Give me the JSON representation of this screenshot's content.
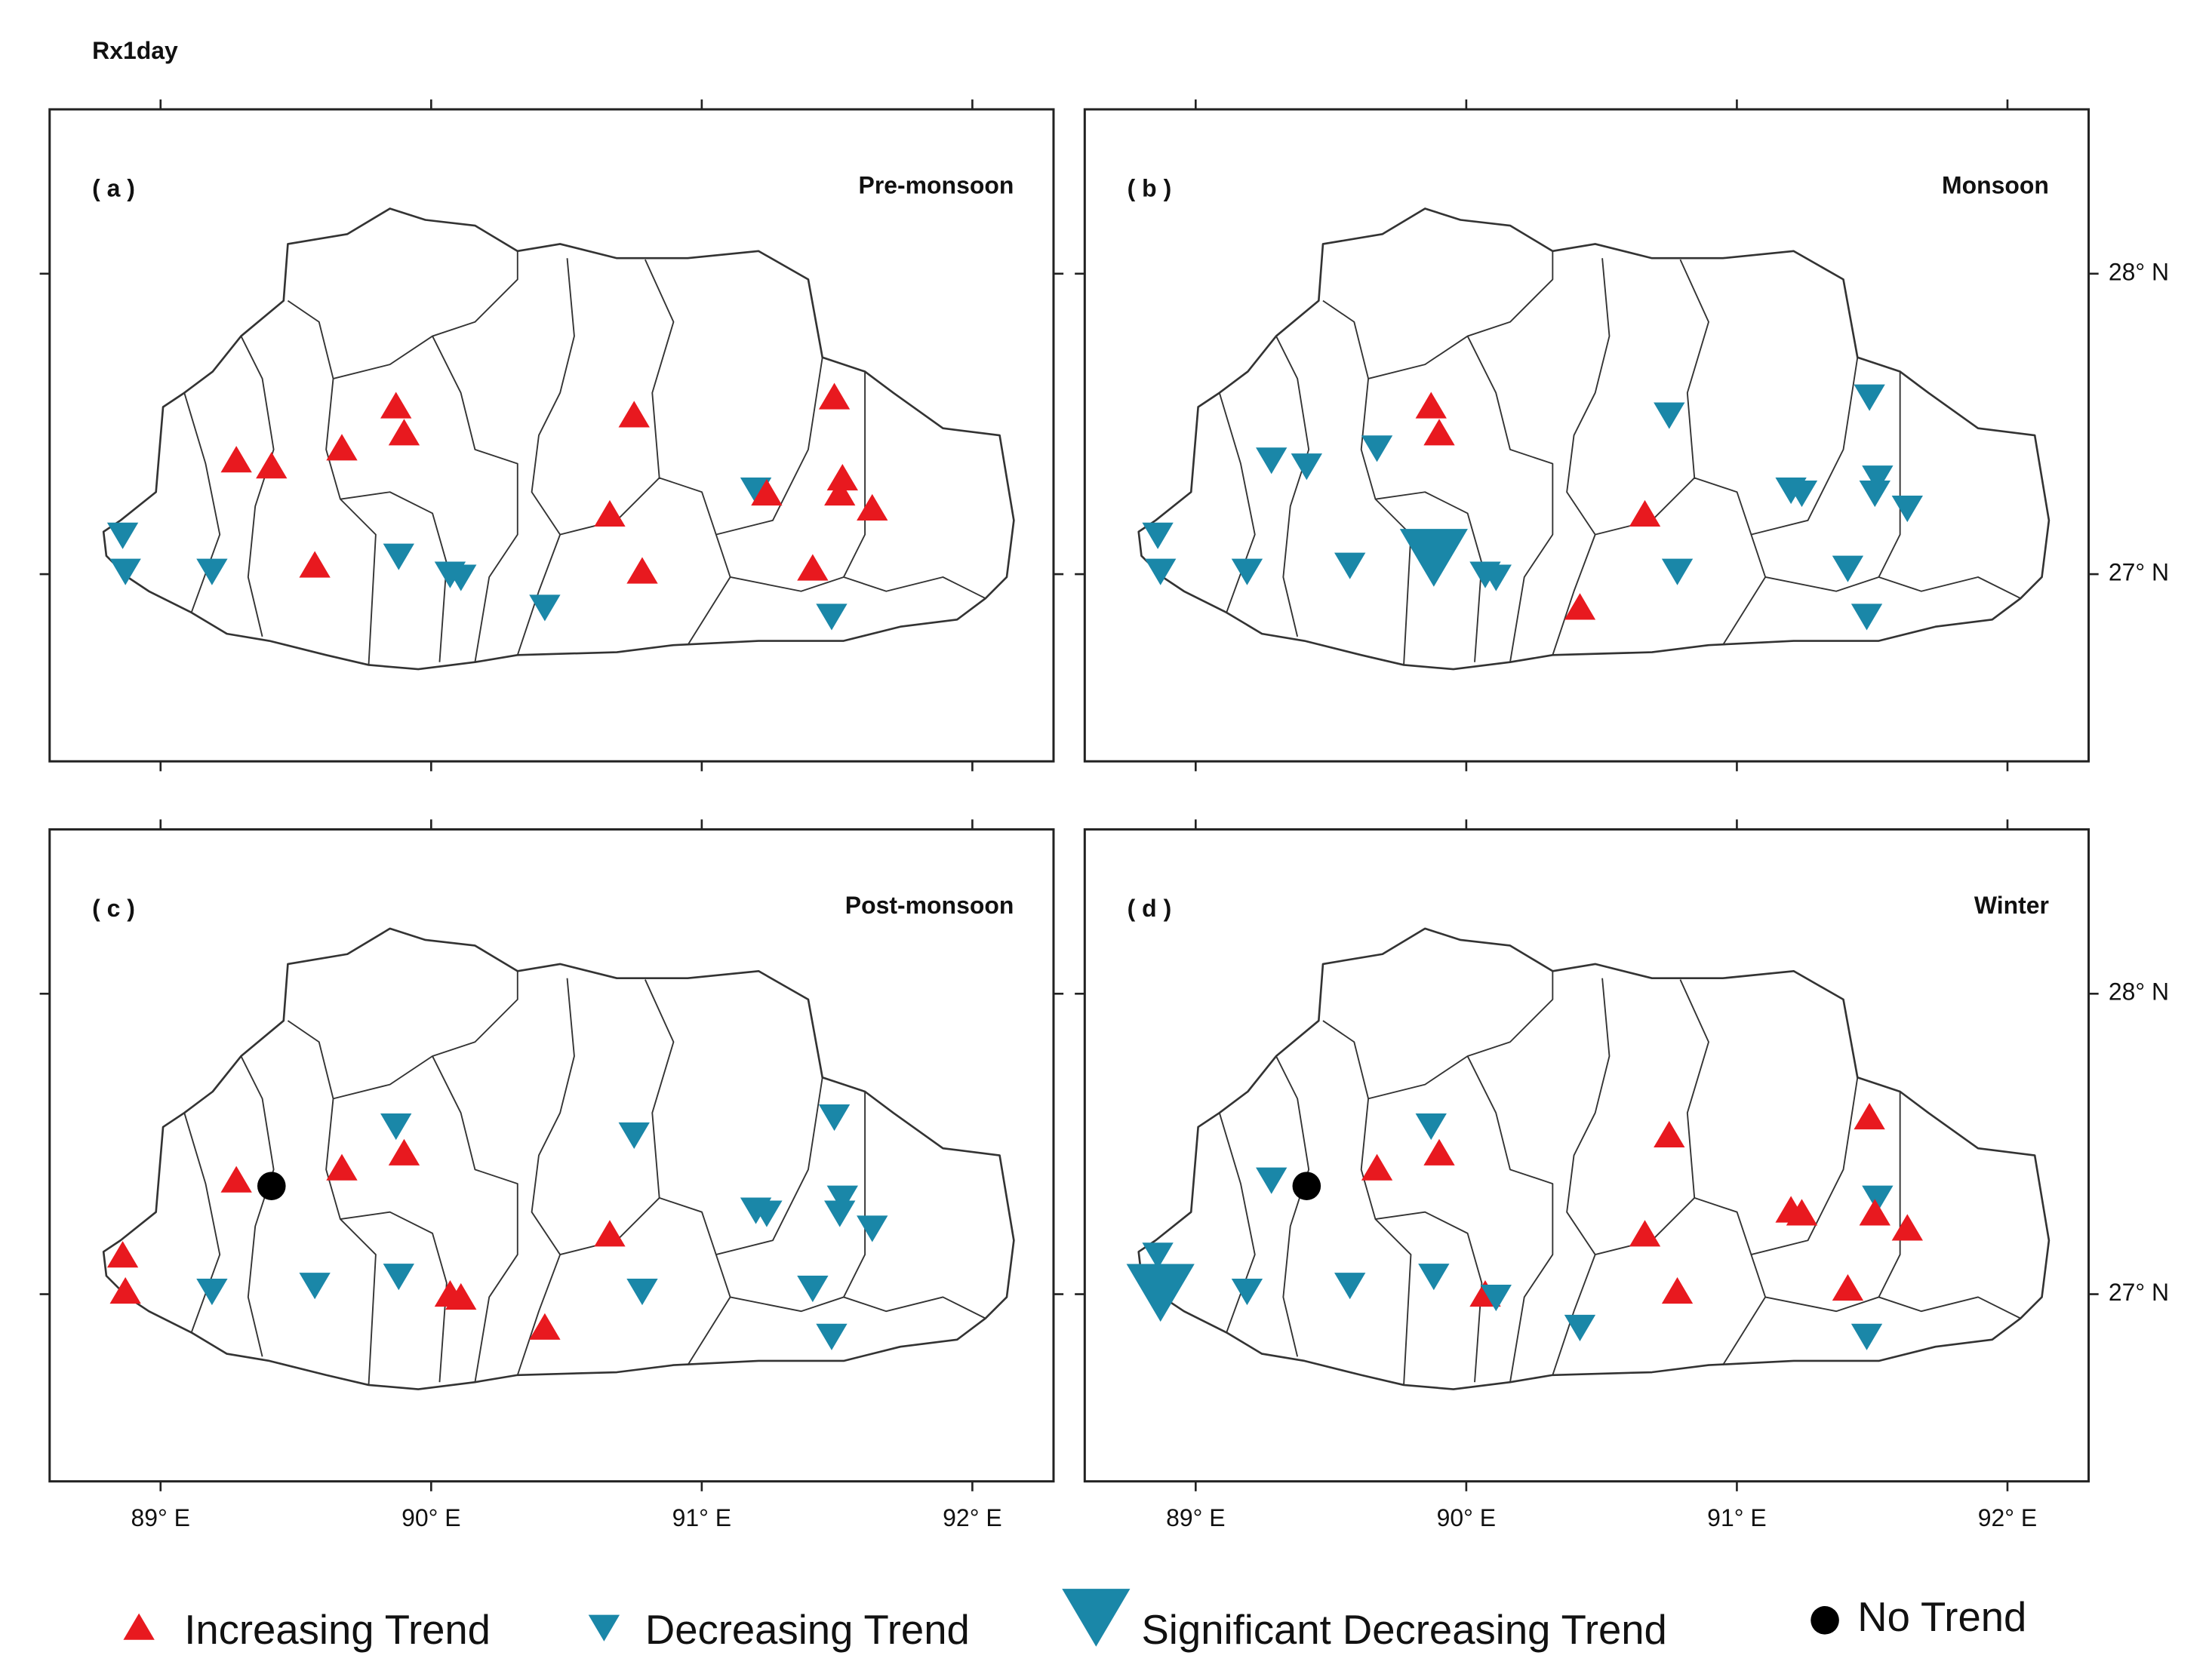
{
  "title": "Rx1day",
  "xlim": [
    88.59,
    92.3
  ],
  "ylim": [
    26.377,
    28.547
  ],
  "xticks": [
    {
      "value": 89,
      "label": "89° E"
    },
    {
      "value": 90,
      "label": "90° E"
    },
    {
      "value": 91,
      "label": "91° E"
    },
    {
      "value": 92,
      "label": "92° E"
    }
  ],
  "yticks": [
    {
      "value": 28,
      "label": "28° N"
    },
    {
      "value": 27,
      "label": "27° N"
    }
  ],
  "legend": [
    {
      "label": "Increasing Trend",
      "color": "#e8191f",
      "marker": "up"
    },
    {
      "label": "Decreasing Trend",
      "color": "#1a87a8",
      "marker": "down"
    },
    {
      "label": "Significant Decreasing Trend",
      "color": "#1a87a8",
      "marker": "down-large"
    },
    {
      "label": "No Trend",
      "color": "#000000",
      "marker": "circle"
    }
  ],
  "stations": [
    {
      "lon": 88.86,
      "lat": 27.13
    },
    {
      "lon": 88.87,
      "lat": 27.01
    },
    {
      "lon": 89.19,
      "lat": 27.01
    },
    {
      "lon": 89.28,
      "lat": 27.38
    },
    {
      "lon": 89.41,
      "lat": 27.36
    },
    {
      "lon": 89.57,
      "lat": 27.03
    },
    {
      "lon": 89.67,
      "lat": 27.42
    },
    {
      "lon": 89.87,
      "lat": 27.56
    },
    {
      "lon": 89.9,
      "lat": 27.47
    },
    {
      "lon": 89.88,
      "lat": 27.06
    },
    {
      "lon": 90.07,
      "lat": 27.0
    },
    {
      "lon": 90.11,
      "lat": 26.99
    },
    {
      "lon": 90.42,
      "lat": 26.89
    },
    {
      "lon": 90.66,
      "lat": 27.2
    },
    {
      "lon": 90.75,
      "lat": 27.53
    },
    {
      "lon": 90.78,
      "lat": 27.01
    },
    {
      "lon": 91.2,
      "lat": 27.28
    },
    {
      "lon": 91.24,
      "lat": 27.27
    },
    {
      "lon": 91.49,
      "lat": 27.59
    },
    {
      "lon": 91.52,
      "lat": 27.32
    },
    {
      "lon": 91.51,
      "lat": 27.27
    },
    {
      "lon": 91.63,
      "lat": 27.22
    },
    {
      "lon": 91.41,
      "lat": 27.02
    },
    {
      "lon": 91.48,
      "lat": 26.86
    }
  ],
  "panels": [
    {
      "label": "( a )",
      "title": "Pre-monsoon",
      "trends": [
        1,
        1,
        1,
        0,
        0,
        0,
        0,
        0,
        0,
        1,
        1,
        1,
        1,
        0,
        0,
        0,
        1,
        0,
        0,
        0,
        0,
        0,
        0,
        1
      ]
    },
    {
      "label": "( b )",
      "title": "Monsoon",
      "trends": [
        1,
        1,
        1,
        1,
        1,
        1,
        1,
        0,
        0,
        2,
        1,
        1,
        0,
        0,
        1,
        1,
        1,
        1,
        1,
        1,
        1,
        1,
        1,
        1
      ]
    },
    {
      "label": "( c )",
      "title": "Post-monsoon",
      "trends": [
        0,
        0,
        1,
        0,
        3,
        1,
        0,
        1,
        0,
        1,
        0,
        0,
        0,
        0,
        1,
        1,
        1,
        1,
        1,
        1,
        1,
        1,
        1,
        1
      ]
    },
    {
      "label": "( d )",
      "title": "Winter",
      "trends": [
        1,
        2,
        1,
        1,
        3,
        1,
        0,
        1,
        0,
        1,
        0,
        1,
        1,
        0,
        0,
        0,
        0,
        0,
        0,
        1,
        0,
        0,
        0,
        1
      ]
    }
  ]
}
